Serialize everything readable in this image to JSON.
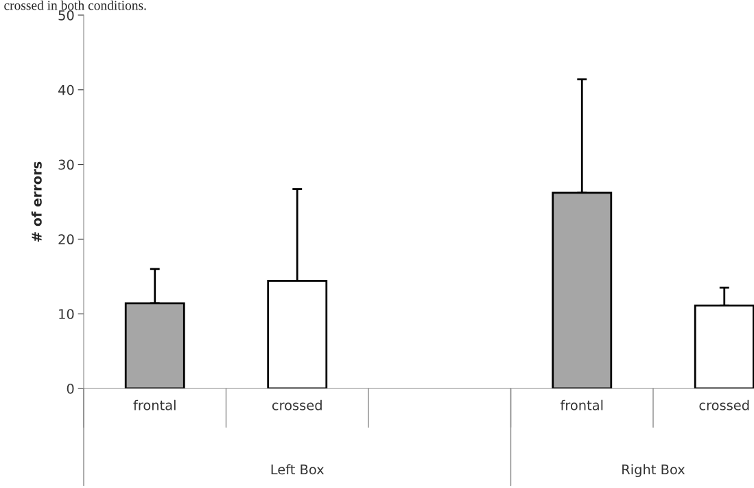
{
  "chart_data": {
    "type": "bar",
    "categories": [
      "frontal",
      "crossed",
      null,
      "frontal",
      "crossed"
    ],
    "values": [
      11.4,
      14.4,
      null,
      26.2,
      11.1
    ],
    "colors": [
      "#a6a6a6",
      "#ffffff",
      null,
      "#a6a6a6",
      "#ffffff"
    ],
    "errors": [
      [
        11.4,
        16.0
      ],
      [
        14.4,
        26.7
      ],
      null,
      [
        26.2,
        41.4
      ],
      [
        11.1,
        13.5
      ]
    ],
    "ylabel": "# of errors",
    "ylim": [
      0,
      50
    ],
    "yticks": [
      0,
      10,
      20,
      30,
      40,
      50
    ],
    "annotations": [
      "crossed in both conditions.",
      "Left Box",
      "Right Box"
    ],
    "grid": false
  }
}
